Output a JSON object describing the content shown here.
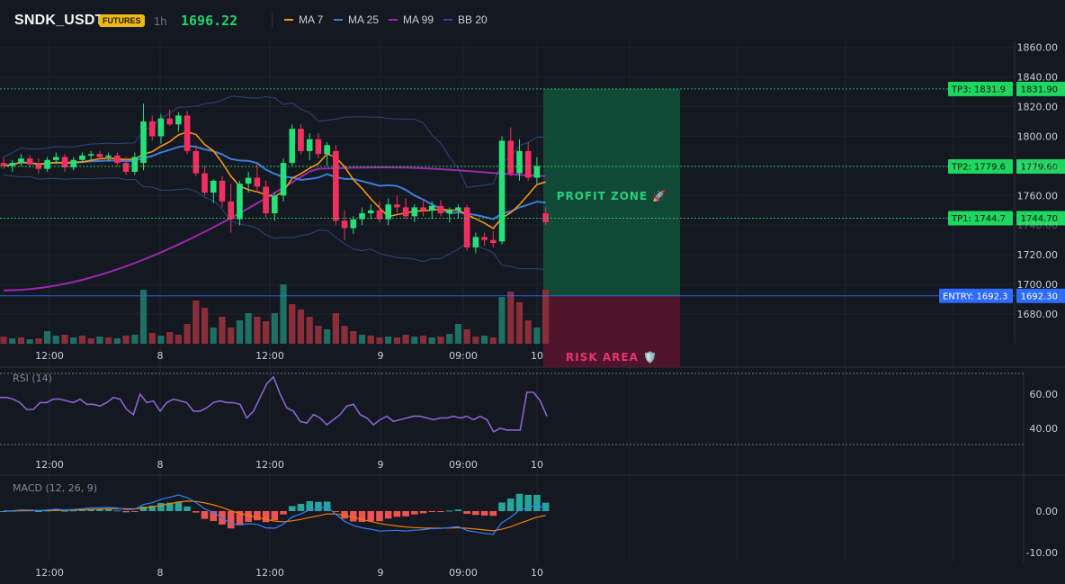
{
  "header": {
    "symbol": "SNDK_USDT",
    "badge": "FUTURES",
    "timeframe": "1h",
    "price": "1696.22",
    "legend": [
      {
        "label": "MA 7",
        "color": "#f7931a"
      },
      {
        "label": "MA 25",
        "color": "#3b7ddd"
      },
      {
        "label": "MA 99",
        "color": "#9c27b0"
      },
      {
        "label": "BB 20",
        "color": "#2f4a8a"
      }
    ]
  },
  "colors": {
    "up": "#26e07a",
    "down": "#f23060",
    "vol_up": "#1f6f63",
    "vol_down": "#8a2f3a",
    "tp": "#1ed760",
    "entry": "#2f6bff",
    "rsi": "#8a63d2",
    "macd": "#2f80ff",
    "signal": "#f57c00",
    "hist_up": "#26a69a",
    "hist_down": "#ef5350"
  },
  "price_axis": {
    "ticks": [
      "1860.00",
      "1840.00",
      "1820.00",
      "1800.00",
      "1780.00",
      "1760.00",
      "1740.00",
      "1720.00",
      "1700.00",
      "1680.00"
    ],
    "min": 1660,
    "max": 1864
  },
  "levels": [
    {
      "tag": "TP3: 1831.9",
      "value": "1831.90",
      "v": 1831.9,
      "kind": "tp"
    },
    {
      "tag": "TP2: 1779.6",
      "value": "1779.60",
      "v": 1779.6,
      "kind": "tp"
    },
    {
      "tag": "TP1: 1744.7",
      "value": "1744.70",
      "v": 1744.7,
      "kind": "tp"
    },
    {
      "tag": "ENTRY: 1692.3",
      "value": "1692.30",
      "v": 1692.3,
      "kind": "entry"
    }
  ],
  "zones": {
    "profit": "PROFIT ZONE 🚀",
    "risk": "RISK AREA 🛡️"
  },
  "time_axis": [
    "12:00",
    "8",
    "12:00",
    "9",
    "09:00",
    "10"
  ],
  "candles": [
    [
      1782,
      1786,
      1778,
      1780
    ],
    [
      1780,
      1784,
      1776,
      1782
    ],
    [
      1782,
      1788,
      1780,
      1785
    ],
    [
      1785,
      1787,
      1779,
      1781
    ],
    [
      1781,
      1785,
      1775,
      1778
    ],
    [
      1778,
      1786,
      1776,
      1784
    ],
    [
      1784,
      1789,
      1781,
      1786
    ],
    [
      1786,
      1788,
      1776,
      1779
    ],
    [
      1779,
      1786,
      1777,
      1784
    ],
    [
      1784,
      1789,
      1782,
      1787
    ],
    [
      1787,
      1790,
      1784,
      1788
    ],
    [
      1788,
      1790,
      1785,
      1786
    ],
    [
      1786,
      1789,
      1783,
      1787
    ],
    [
      1787,
      1789,
      1780,
      1782
    ],
    [
      1782,
      1786,
      1774,
      1776
    ],
    [
      1776,
      1789,
      1774,
      1786
    ],
    [
      1782,
      1822,
      1777,
      1810
    ],
    [
      1810,
      1814,
      1797,
      1800
    ],
    [
      1800,
      1815,
      1795,
      1812
    ],
    [
      1812,
      1818,
      1807,
      1808
    ],
    [
      1808,
      1816,
      1803,
      1814
    ],
    [
      1814,
      1817,
      1788,
      1790
    ],
    [
      1790,
      1794,
      1773,
      1775
    ],
    [
      1775,
      1780,
      1760,
      1762
    ],
    [
      1762,
      1771,
      1755,
      1770
    ],
    [
      1770,
      1773,
      1752,
      1756
    ],
    [
      1756,
      1768,
      1735,
      1744
    ],
    [
      1744,
      1770,
      1740,
      1768
    ],
    [
      1768,
      1776,
      1762,
      1772
    ],
    [
      1772,
      1782,
      1762,
      1766
    ],
    [
      1766,
      1770,
      1745,
      1748
    ],
    [
      1748,
      1762,
      1743,
      1760
    ],
    [
      1760,
      1785,
      1756,
      1782
    ],
    [
      1782,
      1808,
      1780,
      1805
    ],
    [
      1805,
      1808,
      1788,
      1790
    ],
    [
      1790,
      1802,
      1784,
      1798
    ],
    [
      1798,
      1802,
      1785,
      1788
    ],
    [
      1788,
      1796,
      1780,
      1794
    ],
    [
      1790,
      1794,
      1740,
      1743
    ],
    [
      1743,
      1750,
      1730,
      1738
    ],
    [
      1738,
      1746,
      1734,
      1744
    ],
    [
      1744,
      1752,
      1740,
      1748
    ],
    [
      1748,
      1754,
      1744,
      1750
    ],
    [
      1750,
      1756,
      1742,
      1744
    ],
    [
      1744,
      1758,
      1740,
      1754
    ],
    [
      1754,
      1760,
      1748,
      1752
    ],
    [
      1752,
      1758,
      1744,
      1746
    ],
    [
      1746,
      1754,
      1742,
      1752
    ],
    [
      1752,
      1758,
      1746,
      1750
    ],
    [
      1750,
      1756,
      1744,
      1753
    ],
    [
      1753,
      1757,
      1746,
      1748
    ],
    [
      1748,
      1752,
      1742,
      1750
    ],
    [
      1750,
      1754,
      1745,
      1752
    ],
    [
      1752,
      1754,
      1723,
      1725
    ],
    [
      1725,
      1735,
      1721,
      1732
    ],
    [
      1732,
      1735,
      1726,
      1730
    ],
    [
      1730,
      1736,
      1725,
      1728
    ],
    [
      1729,
      1800,
      1727,
      1797
    ],
    [
      1797,
      1806,
      1773,
      1775
    ],
    [
      1775,
      1798,
      1770,
      1790
    ],
    [
      1790,
      1796,
      1770,
      1772
    ],
    [
      1772,
      1786,
      1768,
      1780
    ],
    [
      1748,
      1752,
      1740,
      1742
    ]
  ],
  "volumes": [
    [
      "d",
      8
    ],
    [
      "u",
      6
    ],
    [
      "d",
      7
    ],
    [
      "u",
      5
    ],
    [
      "d",
      6
    ],
    [
      "u",
      14
    ],
    [
      "u",
      9
    ],
    [
      "d",
      10
    ],
    [
      "u",
      7
    ],
    [
      "d",
      9
    ],
    [
      "d",
      6
    ],
    [
      "u",
      8
    ],
    [
      "d",
      7
    ],
    [
      "u",
      6
    ],
    [
      "d",
      9
    ],
    [
      "u",
      10
    ],
    [
      "u",
      60
    ],
    [
      "d",
      12
    ],
    [
      "u",
      9
    ],
    [
      "d",
      13
    ],
    [
      "d",
      10
    ],
    [
      "d",
      22
    ],
    [
      "d",
      48
    ],
    [
      "d",
      40
    ],
    [
      "u",
      18
    ],
    [
      "d",
      30
    ],
    [
      "d",
      18
    ],
    [
      "u",
      26
    ],
    [
      "u",
      34
    ],
    [
      "d",
      30
    ],
    [
      "d",
      25
    ],
    [
      "u",
      34
    ],
    [
      "u",
      66
    ],
    [
      "d",
      44
    ],
    [
      "d",
      38
    ],
    [
      "d",
      30
    ],
    [
      "d",
      20
    ],
    [
      "u",
      16
    ],
    [
      "d",
      34
    ],
    [
      "d",
      20
    ],
    [
      "d",
      14
    ],
    [
      "u",
      10
    ],
    [
      "d",
      9
    ],
    [
      "d",
      7
    ],
    [
      "u",
      8
    ],
    [
      "d",
      7
    ],
    [
      "d",
      10
    ],
    [
      "u",
      8
    ],
    [
      "d",
      9
    ],
    [
      "u",
      7
    ],
    [
      "d",
      8
    ],
    [
      "u",
      11
    ],
    [
      "u",
      22
    ],
    [
      "d",
      16
    ],
    [
      "d",
      8
    ],
    [
      "u",
      9
    ],
    [
      "d",
      7
    ],
    [
      "u",
      52
    ],
    [
      "d",
      58
    ],
    [
      "d",
      46
    ],
    [
      "d",
      26
    ],
    [
      "u",
      18
    ],
    [
      "d",
      60
    ]
  ],
  "rsi": {
    "title": "RSI (14)",
    "ticks": [
      "60.00",
      "40.00"
    ],
    "values": [
      58,
      58,
      57,
      55,
      51,
      51,
      55,
      55,
      57,
      57,
      56,
      55,
      57,
      54,
      54,
      53,
      55,
      58,
      57,
      51,
      48,
      60,
      55,
      56,
      50,
      55,
      57,
      56,
      55,
      50,
      50,
      52,
      55,
      56,
      55,
      55,
      54,
      46,
      50,
      58,
      66,
      70,
      60,
      52,
      50,
      44,
      43,
      48,
      46,
      42,
      45,
      48,
      53,
      54,
      48,
      46,
      42,
      45,
      47,
      44,
      45,
      46,
      47,
      47,
      46,
      45,
      46,
      46,
      47,
      46,
      47,
      45,
      47,
      45,
      38,
      40,
      39,
      39,
      39,
      61,
      61,
      56,
      47
    ]
  },
  "macd": {
    "title": "MACD (12, 26, 9)",
    "ticks": [
      "0.00",
      "-10.00"
    ]
  }
}
